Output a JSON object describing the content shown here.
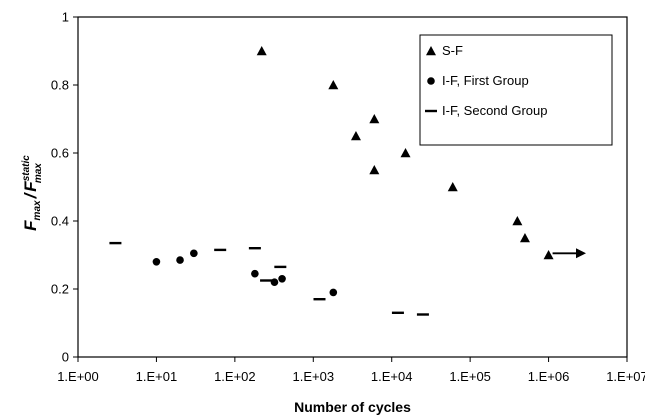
{
  "chart_data": {
    "type": "scatter",
    "x_scale": "log",
    "xlabel": "Number of cycles",
    "ylabel": {
      "main_1": "F",
      "sub_1": "max",
      "separator": "/",
      "main_2": "F",
      "sup_2": "static",
      "sub_2": "max"
    },
    "xlim": [
      1,
      10000000
    ],
    "ylim": [
      0,
      1
    ],
    "x_ticks": [
      1,
      10,
      100,
      1000,
      10000,
      100000,
      1000000,
      10000000
    ],
    "x_tick_labels": [
      "1.E+00",
      "1.E+01",
      "1.E+02",
      "1.E+03",
      "1.E+04",
      "1.E+05",
      "1.E+06",
      "1.E+07"
    ],
    "y_ticks": [
      0,
      0.2,
      0.4,
      0.6,
      0.8,
      1
    ],
    "y_tick_labels": [
      "0",
      "0.2",
      "0.4",
      "0.6",
      "0.8",
      "1"
    ],
    "grid": false,
    "legend_position": "top-right",
    "series": [
      {
        "name": "S-F",
        "marker": "triangle",
        "color": "#000000",
        "points": [
          [
            220,
            0.9
          ],
          [
            1800,
            0.8
          ],
          [
            3500,
            0.65
          ],
          [
            6000,
            0.7
          ],
          [
            6000,
            0.55
          ],
          [
            15000,
            0.6
          ],
          [
            60000,
            0.5
          ],
          [
            400000,
            0.4
          ],
          [
            500000,
            0.35
          ],
          [
            1000000,
            0.3
          ]
        ]
      },
      {
        "name": "I-F, First Group",
        "marker": "circle",
        "color": "#000000",
        "points": [
          [
            10,
            0.28
          ],
          [
            20,
            0.285
          ],
          [
            30,
            0.305
          ],
          [
            180,
            0.245
          ],
          [
            320,
            0.22
          ],
          [
            400,
            0.23
          ],
          [
            1800,
            0.19
          ]
        ]
      },
      {
        "name": "I-F, Second Group",
        "marker": "dash",
        "color": "#000000",
        "points": [
          [
            3,
            0.335
          ],
          [
            65,
            0.315
          ],
          [
            180,
            0.32
          ],
          [
            250,
            0.225
          ],
          [
            380,
            0.265
          ],
          [
            1200,
            0.17
          ],
          [
            12000,
            0.13
          ],
          [
            25000,
            0.125
          ]
        ]
      }
    ],
    "annotations": [
      {
        "type": "arrow",
        "from": [
          1000000,
          0.305
        ],
        "to": [
          3000000,
          0.305
        ]
      }
    ]
  }
}
